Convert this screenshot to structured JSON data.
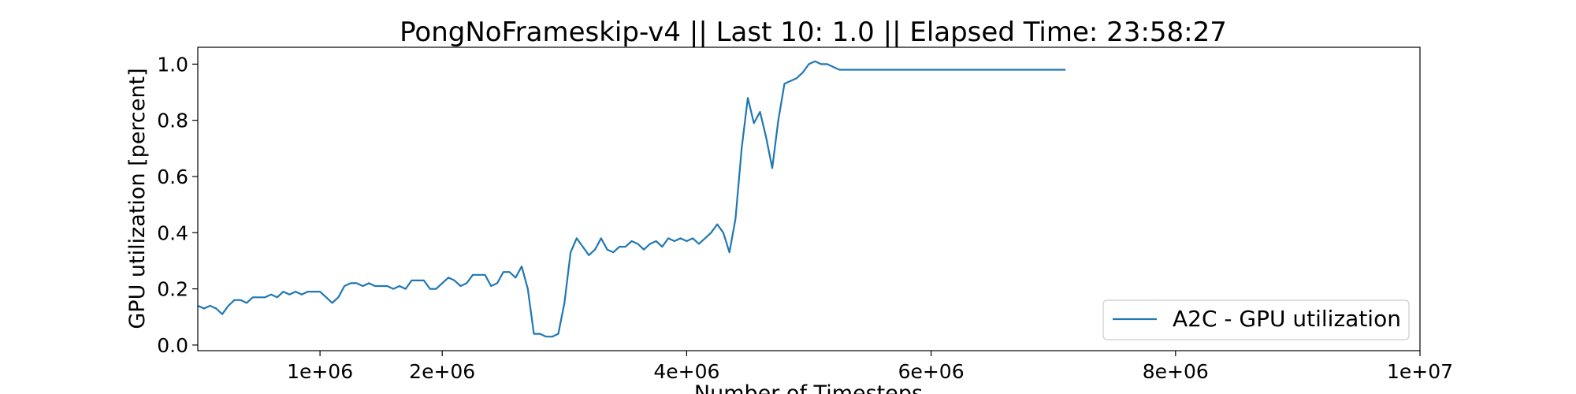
{
  "chart_data": {
    "type": "line",
    "title": "PongNoFrameskip-v4 || Last 10: 1.0 || Elapsed Time: 23:58:27",
    "xlabel": "Number of Timesteps",
    "ylabel": "GPU utilization [percent]",
    "xlim": [
      0,
      10000000
    ],
    "ylim": [
      -0.02,
      1.06
    ],
    "xticks": [
      1000000,
      2000000,
      4000000,
      6000000,
      8000000,
      10000000
    ],
    "xtick_labels": [
      "1e+06",
      "2e+06",
      "4e+06",
      "6e+06",
      "8e+06",
      "1e+07"
    ],
    "yticks": [
      0.0,
      0.2,
      0.4,
      0.6,
      0.8,
      1.0
    ],
    "ytick_labels": [
      "0.0",
      "0.2",
      "0.4",
      "0.6",
      "0.8",
      "1.0"
    ],
    "grid": false,
    "legend_position": "bottom-right",
    "series": [
      {
        "name": "A2C - GPU utilization",
        "color": "#1f77b4",
        "x": [
          0,
          50000,
          100000,
          150000,
          200000,
          250000,
          300000,
          350000,
          400000,
          450000,
          500000,
          550000,
          600000,
          650000,
          700000,
          750000,
          800000,
          850000,
          900000,
          950000,
          1000000,
          1050000,
          1100000,
          1150000,
          1200000,
          1250000,
          1300000,
          1350000,
          1400000,
          1450000,
          1500000,
          1550000,
          1600000,
          1650000,
          1700000,
          1750000,
          1800000,
          1850000,
          1900000,
          1950000,
          2000000,
          2050000,
          2100000,
          2150000,
          2200000,
          2250000,
          2300000,
          2350000,
          2400000,
          2450000,
          2500000,
          2550000,
          2600000,
          2650000,
          2700000,
          2750000,
          2800000,
          2850000,
          2900000,
          2950000,
          3000000,
          3050000,
          3100000,
          3150000,
          3200000,
          3250000,
          3300000,
          3350000,
          3400000,
          3450000,
          3500000,
          3550000,
          3600000,
          3650000,
          3700000,
          3750000,
          3800000,
          3850000,
          3900000,
          3950000,
          4000000,
          4050000,
          4100000,
          4150000,
          4200000,
          4250000,
          4300000,
          4350000,
          4400000,
          4450000,
          4500000,
          4550000,
          4600000,
          4650000,
          4700000,
          4750000,
          4800000,
          4850000,
          4900000,
          4950000,
          5000000,
          5050000,
          5100000,
          5150000,
          5200000,
          5250000,
          5300000,
          5350000,
          5400000,
          5450000,
          5500000,
          5600000,
          5700000,
          5800000,
          5900000,
          6000000,
          6100000,
          6200000,
          6300000,
          6400000,
          6500000,
          6600000,
          6700000,
          6800000,
          6900000,
          7000000,
          7100000
        ],
        "values": [
          0.14,
          0.13,
          0.14,
          0.13,
          0.11,
          0.14,
          0.16,
          0.16,
          0.15,
          0.17,
          0.17,
          0.17,
          0.18,
          0.17,
          0.19,
          0.18,
          0.19,
          0.18,
          0.19,
          0.19,
          0.19,
          0.17,
          0.15,
          0.17,
          0.21,
          0.22,
          0.22,
          0.21,
          0.22,
          0.21,
          0.21,
          0.21,
          0.2,
          0.21,
          0.2,
          0.23,
          0.23,
          0.23,
          0.2,
          0.2,
          0.22,
          0.24,
          0.23,
          0.21,
          0.22,
          0.25,
          0.25,
          0.25,
          0.21,
          0.22,
          0.26,
          0.26,
          0.24,
          0.28,
          0.2,
          0.04,
          0.04,
          0.03,
          0.03,
          0.04,
          0.15,
          0.33,
          0.38,
          0.35,
          0.32,
          0.34,
          0.38,
          0.34,
          0.33,
          0.35,
          0.35,
          0.37,
          0.36,
          0.34,
          0.36,
          0.37,
          0.35,
          0.38,
          0.37,
          0.38,
          0.37,
          0.38,
          0.36,
          0.38,
          0.4,
          0.43,
          0.4,
          0.33,
          0.45,
          0.7,
          0.88,
          0.79,
          0.83,
          0.74,
          0.63,
          0.8,
          0.93,
          0.94,
          0.95,
          0.97,
          1.0,
          1.01,
          1.0,
          1.0,
          0.99,
          0.98,
          0.98,
          0.98,
          0.98,
          0.98,
          0.98,
          0.98,
          0.98,
          0.98,
          0.98,
          0.98,
          0.98,
          0.98,
          0.98,
          0.98,
          0.98,
          0.98,
          0.98,
          0.98,
          0.98,
          0.98,
          0.98
        ]
      }
    ]
  }
}
